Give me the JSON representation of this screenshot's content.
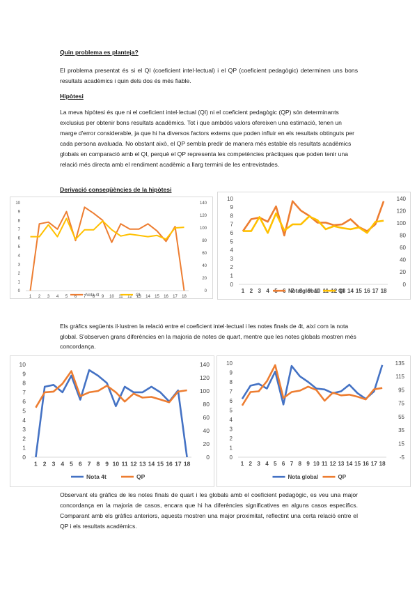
{
  "sections": {
    "q_heading": "Quin problema es planteja?",
    "q_text": "El problema presentat és si el QI (coeficient intel·lectual) i el QP (coeficient pedagògic) determinen uns bons resultats acadèmics i quin dels dos és més fiable.",
    "h_heading": "Hipòtesi",
    "h_text": "La meva hipòtesi és que ni el coeficient intel·lectual (QI) ni el coeficient pedagògic (QP) són determinants exclusius per obtenir bons resultats acadèmics. Tot i que ambdós valors ofereixen una estimació, tenen un marge d'error considerable, ja que hi ha diversos factors externs que poden influir en els resultats obtinguts per cada persona avaluada. No obstant això, el QP sembla predir de manera més estable els resultats acadèmics globals en comparació amb el QI, perquè el QP representa les competències pràctiques que poden tenir una relació més directa amb el rendiment acadèmic a llarg termini de les entrevistades.",
    "d_heading": "Derivació conseqüències de la hipòtesi",
    "p2_text": "Els gràfics següents il·lustren la relació entre el coeficient intel·lectual i les notes finals de 4t, així com la nota global. S'observen grans diferències en la majoria de notes de quart, mentre que les notes globals mostren més concordança.",
    "p3_text": "Observant els gràfics de les notes finals de quart i les globals amb el coeficient pedagògic, es veu una major concordança en la majoria de casos, encara que hi ha diferències significatives en alguns casos específics. Comparant amb els gràfics anteriors, aquests mostren una major proximitat, reflectint una certa relació entre el QP i els resultats acadèmics."
  },
  "chart_data": [
    {
      "type": "line",
      "x": [
        1,
        2,
        3,
        4,
        5,
        6,
        7,
        8,
        9,
        10,
        11,
        12,
        13,
        14,
        15,
        16,
        17,
        18
      ],
      "xlim": [
        1,
        18
      ],
      "ylim_left": [
        0,
        10
      ],
      "yticks_left": [
        0,
        1,
        2,
        3,
        4,
        5,
        6,
        7,
        8,
        9,
        10
      ],
      "ylim_right": [
        0,
        140
      ],
      "yticks_right": [
        0,
        20,
        40,
        60,
        80,
        100,
        120,
        140
      ],
      "grid": false,
      "legend_position": "bottom",
      "series": [
        {
          "name": "Nota 4t",
          "axis": "left",
          "color": "#ed7d31",
          "values": [
            0,
            7.6,
            7.8,
            7.0,
            9.0,
            5.7,
            9.5,
            8.8,
            8.0,
            5.5,
            7.6,
            7.0,
            7.0,
            7.6,
            6.8,
            5.6,
            7.3,
            0
          ]
        },
        {
          "name": "QI",
          "axis": "right",
          "color": "#ffc000",
          "values": [
            86,
            86,
            105,
            86,
            115,
            82,
            97,
            97,
            111,
            97,
            87,
            90,
            88,
            86,
            88,
            82,
            100,
            101
          ]
        }
      ]
    },
    {
      "type": "line",
      "x": [
        1,
        2,
        3,
        4,
        5,
        6,
        7,
        8,
        9,
        10,
        11,
        12,
        13,
        14,
        15,
        16,
        17,
        18
      ],
      "xlim": [
        1,
        18
      ],
      "ylim_left": [
        0,
        10
      ],
      "yticks_left": [
        0,
        1,
        2,
        3,
        4,
        5,
        6,
        7,
        8,
        9,
        10
      ],
      "ylim_right": [
        0,
        140
      ],
      "yticks_right": [
        0,
        20,
        40,
        60,
        80,
        100,
        120,
        140
      ],
      "grid": false,
      "legend_position": "bottom",
      "series": [
        {
          "name": "Nota global",
          "axis": "left",
          "color": "#ed7d31",
          "values": [
            6.2,
            7.6,
            7.8,
            7.3,
            9.1,
            5.7,
            9.7,
            8.6,
            8.0,
            7.2,
            7.2,
            6.9,
            7.0,
            7.6,
            6.7,
            6.2,
            7.0,
            9.7
          ]
        },
        {
          "name": "QI",
          "axis": "right",
          "color": "#ffc000",
          "values": [
            87,
            87,
            110,
            84,
            116,
            88,
            98,
            98,
            111,
            105,
            90,
            95,
            92,
            90,
            93,
            84,
            102,
            104
          ]
        }
      ]
    },
    {
      "type": "line",
      "x": [
        1,
        2,
        3,
        4,
        5,
        6,
        7,
        8,
        9,
        10,
        11,
        12,
        13,
        14,
        15,
        16,
        17,
        18
      ],
      "xlim": [
        1,
        18
      ],
      "ylim_left": [
        0,
        10
      ],
      "yticks_left": [
        0,
        1,
        2,
        3,
        4,
        5,
        6,
        7,
        8,
        9,
        10
      ],
      "ylim_right": [
        0,
        140
      ],
      "yticks_right": [
        0,
        20,
        40,
        60,
        80,
        100,
        120,
        140
      ],
      "grid": false,
      "legend_position": "bottom",
      "series": [
        {
          "name": "Nota 4t",
          "axis": "left",
          "color": "#4472c4",
          "values": [
            0,
            7.6,
            7.8,
            7.0,
            8.8,
            6.2,
            9.4,
            8.8,
            8.0,
            5.5,
            7.6,
            7.0,
            7.0,
            7.6,
            7.0,
            6.0,
            7.2,
            0
          ]
        },
        {
          "name": "QP",
          "axis": "right",
          "color": "#ed7d31",
          "values": [
            75,
            98,
            99,
            111,
            130,
            92,
            98,
            100,
            108,
            98,
            84,
            96,
            90,
            91,
            87,
            83,
            99,
            101
          ]
        }
      ]
    },
    {
      "type": "line",
      "x": [
        1,
        2,
        3,
        4,
        5,
        6,
        7,
        8,
        9,
        10,
        11,
        12,
        13,
        14,
        15,
        16,
        17,
        18
      ],
      "xlim": [
        1,
        18
      ],
      "ylim_left": [
        0,
        10
      ],
      "yticks_left": [
        0,
        1,
        2,
        3,
        4,
        5,
        6,
        7,
        8,
        9,
        10
      ],
      "ylim_right": [
        -5,
        135
      ],
      "yticks_right": [
        -5,
        15,
        35,
        55,
        75,
        95,
        115,
        135
      ],
      "grid": false,
      "legend_position": "bottom",
      "series": [
        {
          "name": "Nota global",
          "axis": "left",
          "color": "#4472c4",
          "values": [
            6.2,
            7.6,
            7.8,
            7.3,
            9.1,
            5.6,
            9.7,
            8.6,
            8.0,
            7.3,
            7.2,
            6.8,
            7.0,
            7.7,
            6.8,
            6.2,
            7.0,
            9.8
          ]
        },
        {
          "name": "QP",
          "axis": "right",
          "color": "#ed7d31",
          "values": [
            72,
            92,
            93,
            108,
            132,
            83,
            92,
            94,
            100,
            95,
            79,
            91,
            87,
            88,
            85,
            81,
            96,
            98
          ]
        }
      ]
    }
  ]
}
